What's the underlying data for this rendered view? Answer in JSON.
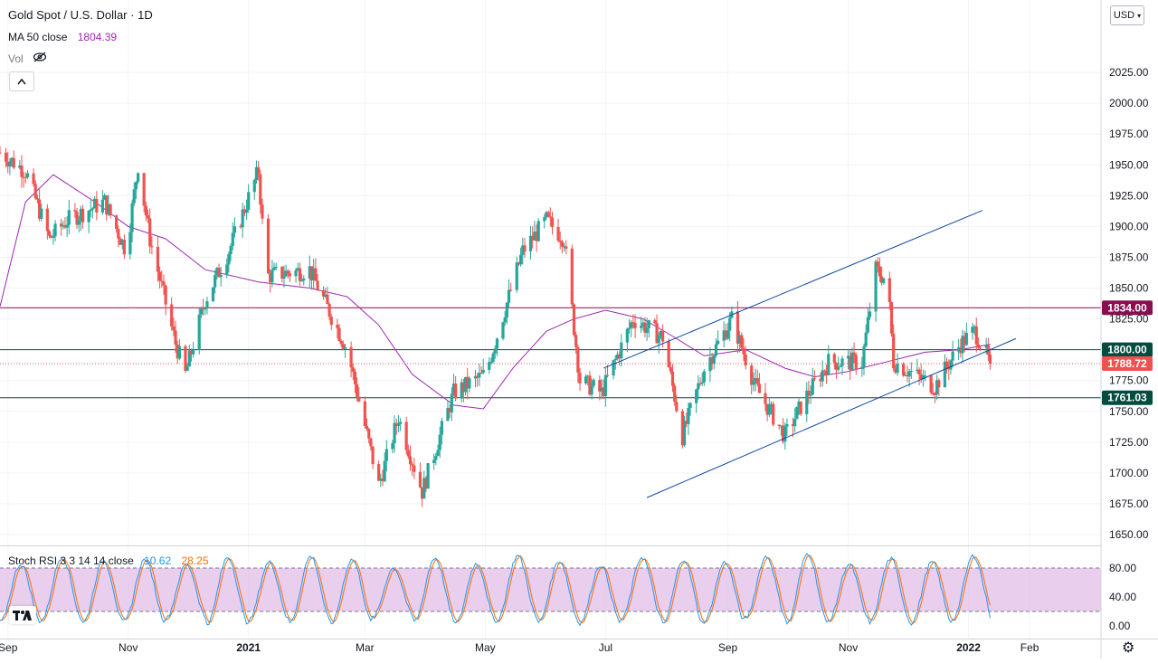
{
  "header": {
    "symbol": "Gold Spot / U.S. Dollar",
    "separator": "·",
    "interval": "1D",
    "ma_label": "MA 50 close",
    "ma_value": "1804.39",
    "vol_label": "Vol",
    "currency": "USD",
    "collapse_icon": "chevron-up-icon",
    "eye_icon": "eye-off-icon"
  },
  "stoch": {
    "label": "Stoch RSI 3 3 14 14 close",
    "k_value": "10.62",
    "d_value": "28.25",
    "k_color": "#2196f3",
    "d_color": "#ff6d00",
    "upper": 80,
    "lower": 20,
    "ticks": [
      "80.00",
      "40.00",
      "0.00"
    ]
  },
  "colors": {
    "up": "#26a69a",
    "down": "#ef5350",
    "ma": "#9c27b0",
    "level_resistance": "#880e4f",
    "level_support": "#004d40",
    "channel": "#0d47a1",
    "band_fill": "#e1bee7"
  },
  "chart_data": [
    {
      "type": "candlestick",
      "title": "Gold Spot / U.S. Dollar",
      "interval": "1D",
      "ylim": [
        1650,
        2050
      ],
      "y_ticks": [
        1650,
        1675,
        1700,
        1725,
        1750,
        1775,
        1800,
        1825,
        1850,
        1875,
        1900,
        1925,
        1950,
        1975,
        2000,
        2025
      ],
      "x_ticks": [
        "Sep",
        "Nov",
        "2021",
        "Mar",
        "May",
        "Jul",
        "Sep",
        "Nov",
        "2022",
        "Feb"
      ],
      "x_range": [
        "2020-08-28",
        "2022-02-28"
      ],
      "price_path": [
        [
          "2020-08-28",
          1960
        ],
        [
          "2020-09-10",
          1945
        ],
        [
          "2020-09-22",
          1890
        ],
        [
          "2020-10-01",
          1905
        ],
        [
          "2020-10-20",
          1920
        ],
        [
          "2020-10-31",
          1880
        ],
        [
          "2020-11-06",
          1950
        ],
        [
          "2020-11-12",
          1890
        ],
        [
          "2020-11-25",
          1805
        ],
        [
          "2020-11-30",
          1780
        ],
        [
          "2020-12-10",
          1840
        ],
        [
          "2020-12-22",
          1880
        ],
        [
          "2021-01-06",
          1945
        ],
        [
          "2021-01-10",
          1860
        ],
        [
          "2021-02-01",
          1865
        ],
        [
          "2021-02-20",
          1800
        ],
        [
          "2021-03-08",
          1690
        ],
        [
          "2021-03-18",
          1745
        ],
        [
          "2021-03-30",
          1685
        ],
        [
          "2021-04-15",
          1765
        ],
        [
          "2021-05-01",
          1780
        ],
        [
          "2021-05-20",
          1880
        ],
        [
          "2021-06-01",
          1905
        ],
        [
          "2021-06-10",
          1890
        ],
        [
          "2021-06-18",
          1775
        ],
        [
          "2021-06-29",
          1765
        ],
        [
          "2021-07-15",
          1825
        ],
        [
          "2021-07-30",
          1810
        ],
        [
          "2021-08-09",
          1730
        ],
        [
          "2021-08-20",
          1785
        ],
        [
          "2021-09-03",
          1825
        ],
        [
          "2021-09-15",
          1770
        ],
        [
          "2021-09-30",
          1730
        ],
        [
          "2021-10-10",
          1760
        ],
        [
          "2021-10-22",
          1790
        ],
        [
          "2021-11-08",
          1790
        ],
        [
          "2021-11-15",
          1865
        ],
        [
          "2021-11-21",
          1855
        ],
        [
          "2021-11-24",
          1790
        ],
        [
          "2021-12-15",
          1770
        ],
        [
          "2021-12-28",
          1805
        ],
        [
          "2022-01-04",
          1815
        ],
        [
          "2022-01-09",
          1800
        ],
        [
          "2022-01-12",
          1788
        ]
      ],
      "moving_average": {
        "name": "MA 50 close",
        "path": [
          [
            "2020-08-28",
            1835
          ],
          [
            "2020-09-10",
            1920
          ],
          [
            "2020-09-24",
            1942
          ],
          [
            "2020-10-15",
            1920
          ],
          [
            "2020-11-01",
            1900
          ],
          [
            "2020-11-20",
            1890
          ],
          [
            "2020-12-10",
            1865
          ],
          [
            "2021-01-06",
            1855
          ],
          [
            "2021-02-01",
            1850
          ],
          [
            "2021-02-20",
            1843
          ],
          [
            "2021-03-08",
            1820
          ],
          [
            "2021-03-25",
            1780
          ],
          [
            "2021-04-15",
            1755
          ],
          [
            "2021-04-30",
            1752
          ],
          [
            "2021-05-15",
            1785
          ],
          [
            "2021-06-01",
            1815
          ],
          [
            "2021-06-15",
            1825
          ],
          [
            "2021-07-01",
            1832
          ],
          [
            "2021-07-20",
            1825
          ],
          [
            "2021-08-05",
            1810
          ],
          [
            "2021-08-20",
            1795
          ],
          [
            "2021-09-10",
            1800
          ],
          [
            "2021-09-30",
            1785
          ],
          [
            "2021-10-15",
            1778
          ],
          [
            "2021-10-31",
            1782
          ],
          [
            "2021-11-20",
            1790
          ],
          [
            "2021-12-10",
            1798
          ],
          [
            "2021-12-28",
            1800
          ],
          [
            "2022-01-12",
            1804.39
          ]
        ]
      },
      "levels": [
        {
          "value": 1834.0,
          "label": "1834.00",
          "color": "#880e4f"
        },
        {
          "value": 1800.0,
          "label": "1800.00",
          "color": "#004d40"
        },
        {
          "value": 1761.03,
          "label": "1761.03",
          "color": "#004d40"
        }
      ],
      "last_price": {
        "value": 1788.72,
        "label": "1788.72",
        "color": "#ef5350"
      },
      "channel_lines": [
        {
          "from": [
            "2021-07-22",
            1680
          ],
          "to": [
            "2022-01-25",
            1809
          ]
        },
        {
          "from": [
            "2021-06-30",
            1785
          ],
          "to": [
            "2022-01-08",
            1913
          ]
        }
      ]
    },
    {
      "type": "line",
      "title": "Stoch RSI 3 3 14 14 close",
      "ylim": [
        0,
        100
      ],
      "y_ticks": [
        0,
        40,
        80
      ],
      "band": [
        20,
        80
      ],
      "series": [
        {
          "name": "K",
          "color": "#2196f3",
          "last": 10.62
        },
        {
          "name": "D",
          "color": "#ff6d00",
          "last": 28.25
        }
      ],
      "cycle_days": 21,
      "cycles_low_high": [
        [
          5,
          85
        ],
        [
          8,
          95
        ],
        [
          4,
          90
        ],
        [
          6,
          92
        ],
        [
          10,
          85
        ],
        [
          3,
          95
        ],
        [
          7,
          88
        ],
        [
          5,
          96
        ],
        [
          4,
          92
        ],
        [
          12,
          80
        ],
        [
          6,
          94
        ],
        [
          3,
          86
        ],
        [
          8,
          97
        ],
        [
          5,
          90
        ],
        [
          4,
          84
        ],
        [
          9,
          95
        ],
        [
          2,
          92
        ],
        [
          6,
          88
        ],
        [
          11,
          96
        ],
        [
          3,
          100
        ],
        [
          7,
          85
        ],
        [
          5,
          93
        ],
        [
          4,
          88
        ],
        [
          10,
          97
        ],
        [
          3,
          90
        ],
        [
          6,
          95
        ],
        [
          8,
          84
        ],
        [
          10.62,
          98
        ]
      ]
    }
  ]
}
